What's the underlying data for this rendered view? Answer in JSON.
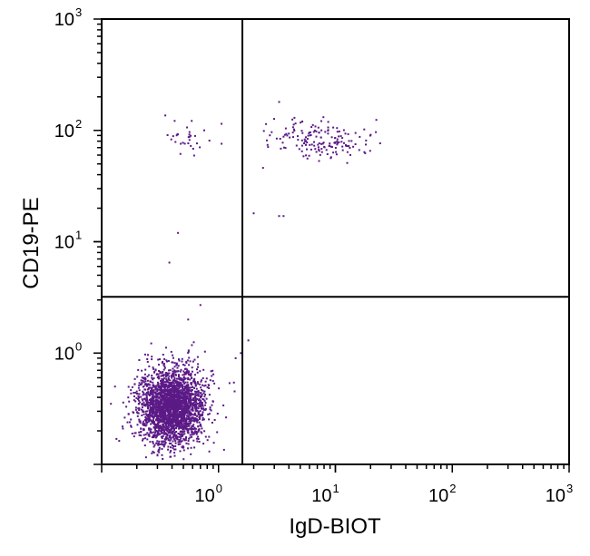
{
  "chart_data": {
    "type": "scatter",
    "title": "",
    "xlabel": "IgD-BIOT",
    "ylabel": "CD19-PE",
    "x_scale": "log",
    "y_scale": "log",
    "xlim": [
      0.1,
      1000
    ],
    "ylim": [
      0.1,
      1000
    ],
    "x_ticks": [
      {
        "base": "10",
        "exp": "0",
        "value": 1
      },
      {
        "base": "10",
        "exp": "1",
        "value": 10
      },
      {
        "base": "10",
        "exp": "2",
        "value": 100
      },
      {
        "base": "10",
        "exp": "3",
        "value": 1000
      }
    ],
    "y_ticks": [
      {
        "base": "10",
        "exp": "0",
        "value": 1
      },
      {
        "base": "10",
        "exp": "1",
        "value": 10
      },
      {
        "base": "10",
        "exp": "2",
        "value": 100
      },
      {
        "base": "10",
        "exp": "3",
        "value": 1000
      }
    ],
    "gates": {
      "x": 1.6,
      "y": 3.2
    },
    "grid": false,
    "legend": "none",
    "point_color": "#5b1a86",
    "clusters": [
      {
        "name_hint": "double-negative",
        "n": 2600,
        "center": [
          0.4,
          0.33
        ],
        "spread_log10": [
          0.14,
          0.17
        ],
        "x_range": [
          0.11,
          1.5
        ],
        "y_range": [
          0.11,
          2.5
        ]
      },
      {
        "name_hint": "double-positive",
        "n": 170,
        "center": [
          8.0,
          82.0
        ],
        "spread_log10": [
          0.23,
          0.09
        ],
        "x_range": [
          1.7,
          25.0
        ],
        "y_range": [
          25.0,
          200.0
        ]
      },
      {
        "name_hint": "cd19-only",
        "n": 32,
        "center": [
          0.6,
          85.0
        ],
        "spread_log10": [
          0.13,
          0.09
        ],
        "x_range": [
          0.25,
          1.5
        ],
        "y_range": [
          40.0,
          150.0
        ]
      }
    ],
    "outlier_points": [
      {
        "x": 0.45,
        "y": 12.0
      },
      {
        "x": 0.38,
        "y": 6.5
      },
      {
        "x": 3.3,
        "y": 17.0
      },
      {
        "x": 3.6,
        "y": 17.0
      },
      {
        "x": 2.0,
        "y": 18.0
      },
      {
        "x": 1.6,
        "y": 28.0
      },
      {
        "x": 3.3,
        "y": 180.0
      },
      {
        "x": 0.7,
        "y": 2.7
      },
      {
        "x": 1.8,
        "y": 1.3
      },
      {
        "x": 0.55,
        "y": 2.0
      },
      {
        "x": 1.55,
        "y": 1.0
      },
      {
        "x": 1.4,
        "y": 0.9
      },
      {
        "x": 0.13,
        "y": 0.5
      },
      {
        "x": 0.12,
        "y": 0.35
      }
    ]
  }
}
